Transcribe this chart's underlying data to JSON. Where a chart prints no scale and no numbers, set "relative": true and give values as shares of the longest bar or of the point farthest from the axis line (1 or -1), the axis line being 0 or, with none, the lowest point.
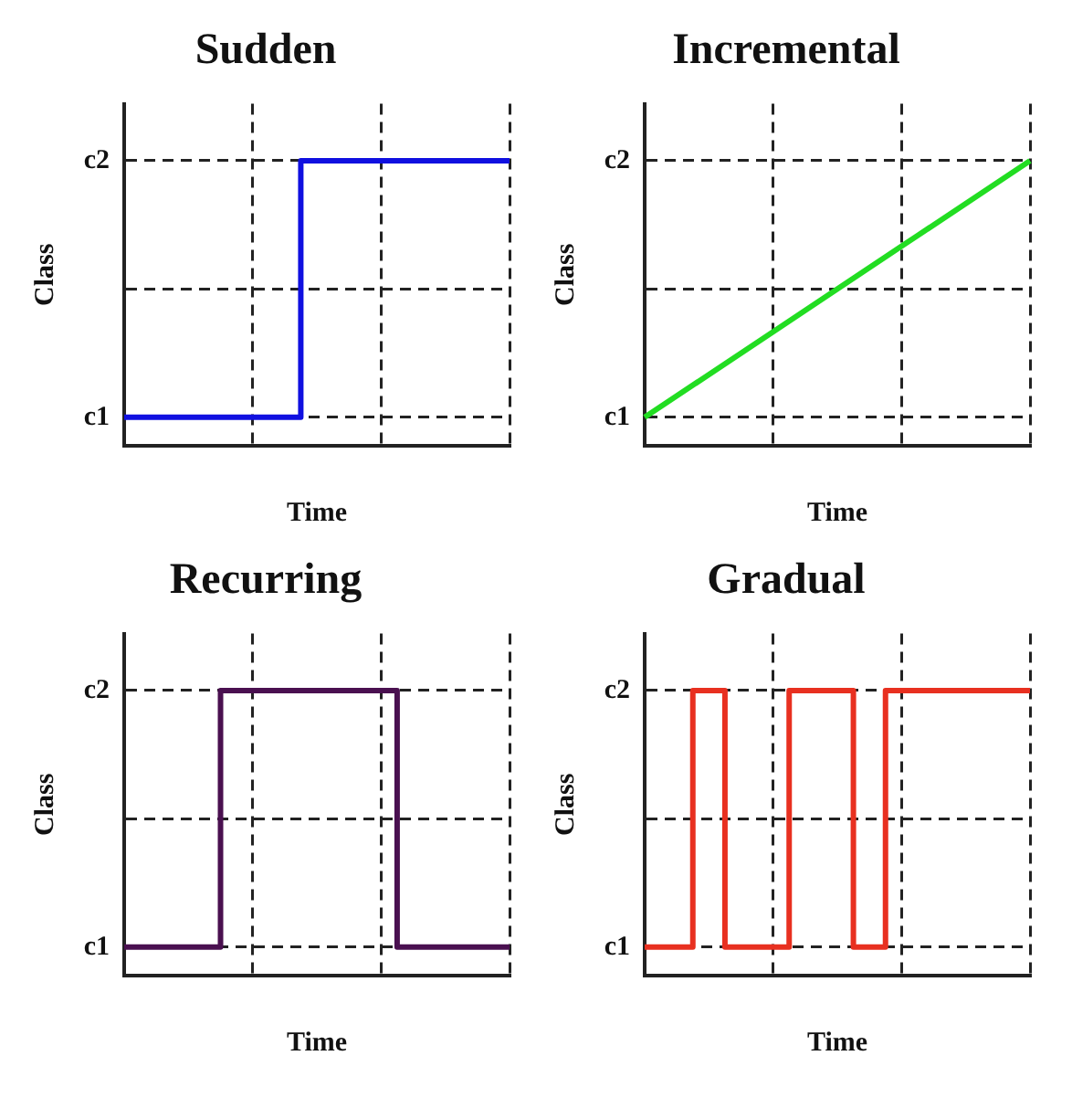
{
  "chart_data": [
    {
      "type": "step",
      "title": "Sudden",
      "xlabel": "Time",
      "ylabel": "Class",
      "relative": true,
      "annotations": [
        "c1",
        "c2"
      ],
      "categories": [
        null,
        null,
        null,
        null,
        null,
        null,
        null,
        null,
        null,
        null,
        null,
        null,
        null,
        null,
        null,
        null,
        null,
        null,
        null,
        null,
        null,
        null,
        null,
        null,
        null
      ],
      "series": [
        {
          "color": "#1010e0",
          "values": [
            0.1,
            0.1,
            0.1,
            0.1,
            0.1,
            0.1,
            0.1,
            0.1,
            0.1,
            0.1,
            0.1,
            0.1,
            1,
            1,
            1,
            1,
            1,
            1,
            1,
            1,
            1,
            1,
            1,
            1,
            1
          ]
        }
      ],
      "grid": true,
      "legend": false,
      "marker": "none",
      "line_style": "solid"
    },
    {
      "type": "line",
      "title": "Incremental",
      "xlabel": "Time",
      "ylabel": "Class",
      "relative": true,
      "annotations": [
        "c1",
        "c2"
      ],
      "categories": [
        null,
        null,
        null,
        null
      ],
      "series": [
        {
          "color": "#22dd22",
          "values": [
            0.1,
            0.4,
            0.7,
            1
          ]
        }
      ],
      "grid": true,
      "legend": false,
      "marker": "none",
      "line_style": "solid"
    },
    {
      "type": "step",
      "title": "Recurring",
      "xlabel": "Time",
      "ylabel": "Class",
      "relative": true,
      "annotations": [
        "c1",
        "c2"
      ],
      "categories": [
        null,
        null,
        null,
        null,
        null,
        null,
        null,
        null,
        null,
        null,
        null,
        null,
        null,
        null,
        null,
        null,
        null,
        null,
        null,
        null,
        null,
        null,
        null,
        null,
        null
      ],
      "series": [
        {
          "color": "#4a1050",
          "values": [
            0.1,
            0.1,
            0.1,
            0.1,
            0.1,
            0.1,
            0.1,
            1,
            1,
            1,
            1,
            1,
            1,
            1,
            1,
            1,
            1,
            1,
            0.1,
            0.1,
            0.1,
            0.1,
            0.1,
            0.1,
            0.1
          ]
        }
      ],
      "grid": true,
      "legend": false,
      "marker": "none",
      "line_style": "solid"
    },
    {
      "type": "step",
      "title": "Gradual",
      "xlabel": "Time",
      "ylabel": "Class",
      "relative": true,
      "annotations": [
        "c1",
        "c2"
      ],
      "categories": [
        null,
        null,
        null,
        null,
        null,
        null,
        null,
        null,
        null,
        null,
        null,
        null,
        null,
        null,
        null,
        null,
        null,
        null,
        null,
        null,
        null,
        null,
        null,
        null,
        null
      ],
      "series": [
        {
          "color": "#e83020",
          "values": [
            0.1,
            0.1,
            0.1,
            0.1,
            1,
            1,
            0.1,
            0.1,
            0.1,
            0.1,
            1,
            1,
            1,
            1,
            0.1,
            0.1,
            1,
            1,
            1,
            1,
            1,
            1,
            1,
            1,
            1
          ]
        }
      ],
      "grid": true,
      "legend": false,
      "marker": "none",
      "line_style": "solid"
    }
  ]
}
